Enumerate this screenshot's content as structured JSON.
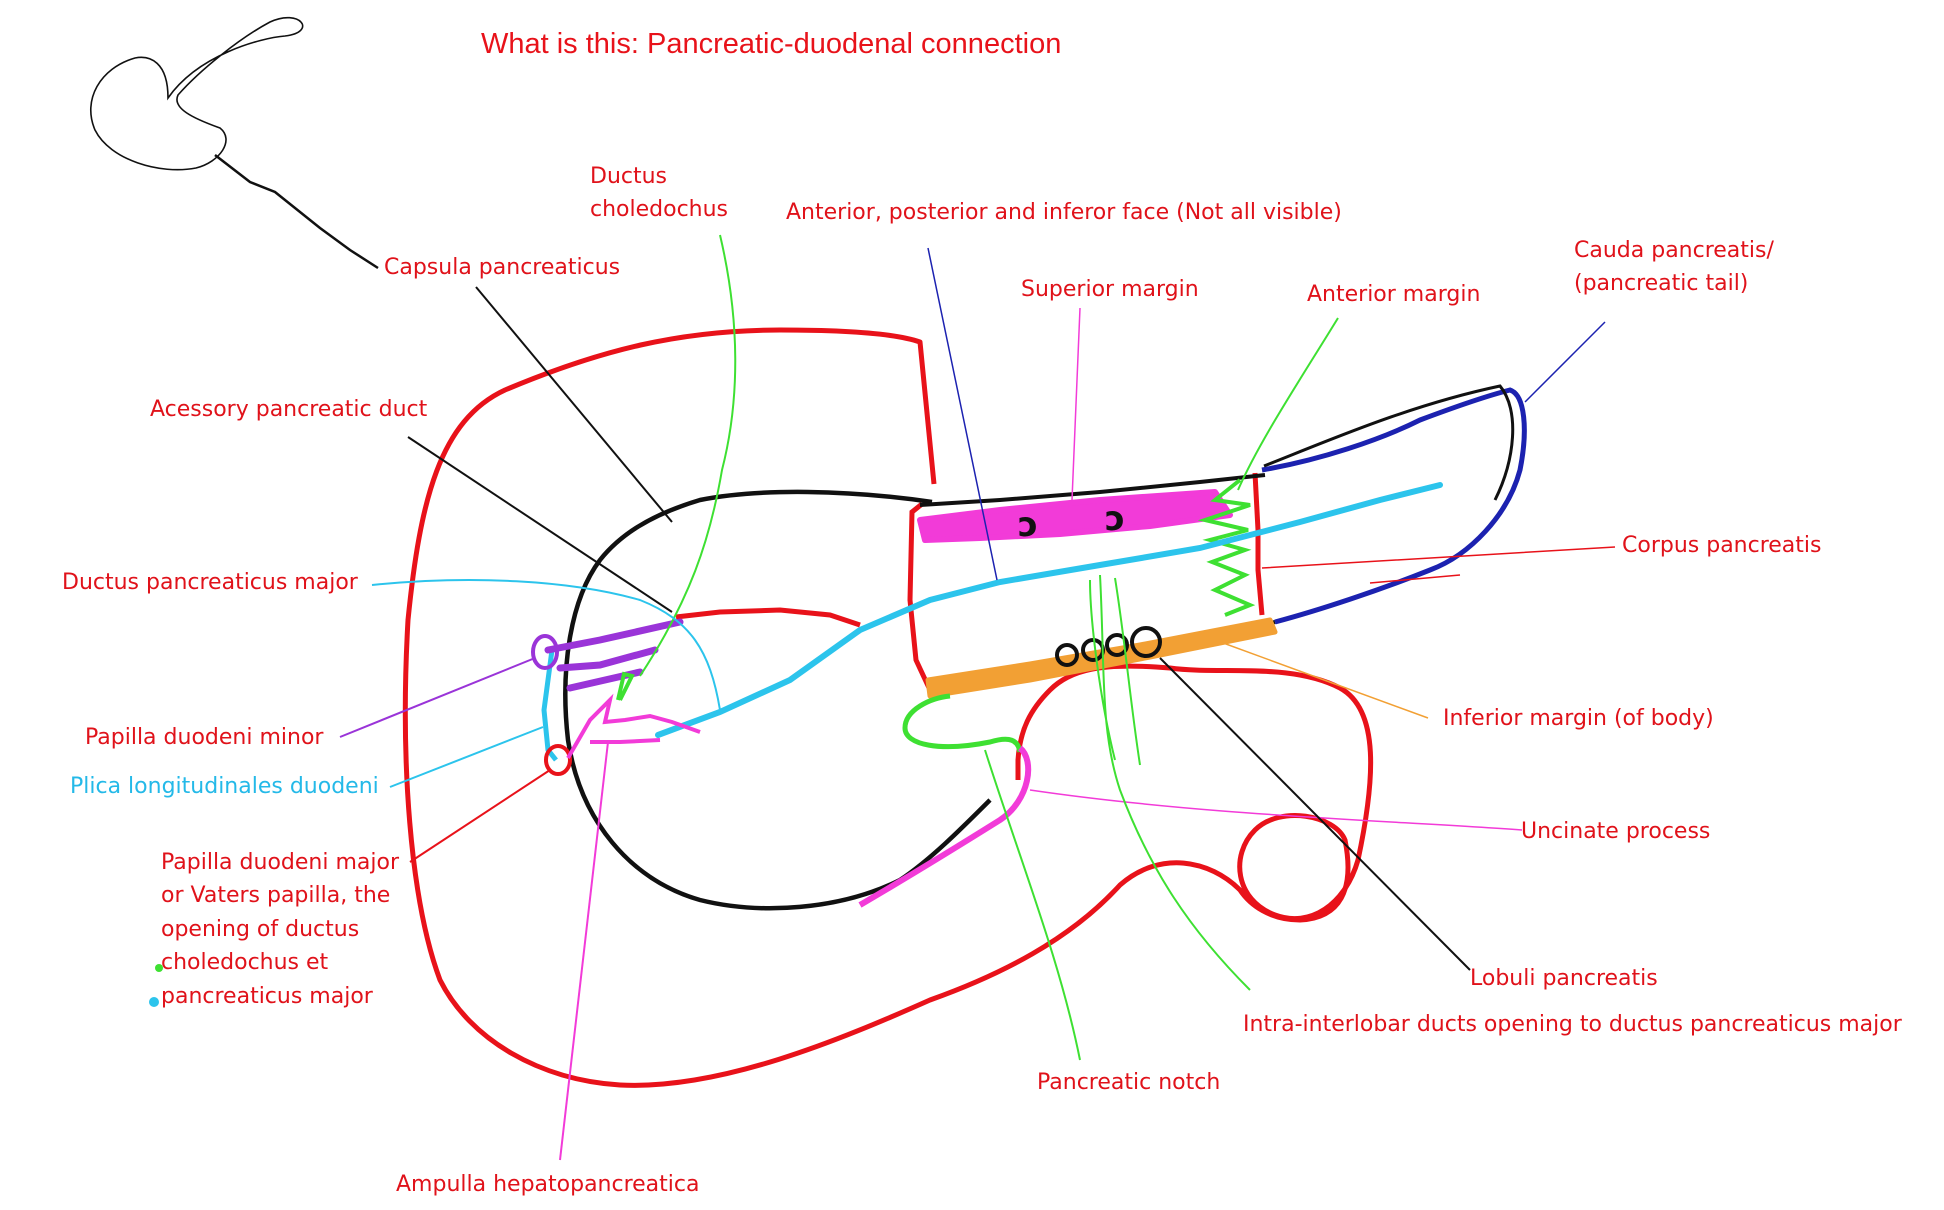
{
  "title": "What is this: Pancreatic-duodenal connection",
  "colors": {
    "label_red": "#e0121a",
    "label_cyan": "#24b9e8",
    "duodenum": "#e8121a",
    "pancreas_outline": "#111111",
    "tail": "#1c22b0",
    "superior_margin": "#f23bd8",
    "inferior_margin": "#f2a034",
    "anterior_margin": "#3ee032",
    "main_duct": "#2cc4ec",
    "accessory_duct": "#9a34d8"
  },
  "labels": {
    "ductus_choledochus": "Ductus choledochus",
    "faces": "Anterior, posterior and inferor face (Not all visible)",
    "capsula": "Capsula pancreaticus",
    "superior_margin": "Superior margin",
    "anterior_margin": "Anterior margin",
    "cauda": "Cauda pancreatis/ (pancreatic tail)",
    "accessory_duct": "Acessory pancreatic duct",
    "corpus": "Corpus pancreatis",
    "ductus_major": "Ductus pancreaticus major",
    "inferior_margin": "Inferior margin (of body)",
    "papilla_minor": "Papilla duodeni minor",
    "plica": "Plica longitudinales duodeni",
    "uncinate": "Uncinate process",
    "papilla_major": "Papilla duodeni major or Vaters papilla, the opening of ductus choledochus et pancreaticus major",
    "lobuli": "Lobuli pancreatis",
    "intra_ducts": "Intra-interlobar ducts opening to ductus pancreaticus major",
    "notch": "Pancreatic notch",
    "ampulla": "Ampulla hepatopancreatica"
  }
}
